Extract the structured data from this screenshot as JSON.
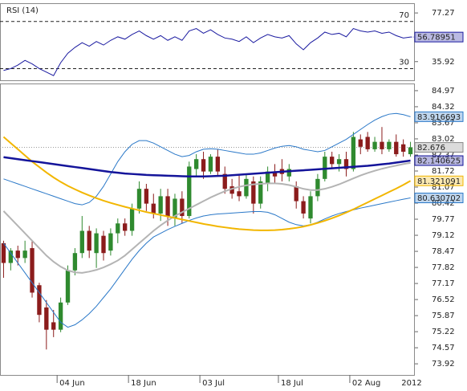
{
  "chart_data": [
    {
      "type": "line",
      "title": "RSI (14)",
      "color": "#1a1aa0",
      "values": [
        28.4,
        30,
        33,
        37,
        34,
        30,
        27,
        24,
        35,
        43,
        48,
        52,
        49,
        53,
        50,
        54,
        57,
        55,
        59,
        62,
        58,
        55,
        58,
        54,
        57,
        54,
        62,
        64,
        60,
        63,
        59,
        56,
        55,
        53,
        57,
        52,
        56,
        59,
        57,
        56,
        58,
        51,
        46,
        52,
        56,
        61,
        59,
        60,
        57,
        64,
        62,
        61,
        62,
        60,
        61,
        58,
        56,
        56.78951
      ],
      "ylim": [
        20.07,
        85.54
      ],
      "yticks": [
        35.92,
        77.27
      ],
      "levels": [
        30,
        70
      ]
    },
    {
      "type": "candlestick",
      "categories": [
        null,
        null,
        null,
        null,
        null,
        null,
        null,
        null,
        "04 Jun",
        null,
        null,
        null,
        null,
        null,
        null,
        null,
        null,
        null,
        "18 Jun",
        null,
        null,
        null,
        null,
        null,
        null,
        null,
        null,
        null,
        "03 Jul",
        null,
        null,
        null,
        null,
        null,
        null,
        null,
        null,
        null,
        null,
        "18 Jul",
        null,
        null,
        null,
        null,
        null,
        null,
        null,
        null,
        null,
        "02 Aug",
        null,
        null,
        null,
        null,
        null,
        null,
        null,
        null
      ],
      "year_label": "2012",
      "open": [
        78.8,
        78.0,
        78.5,
        78.2,
        78.6,
        77.1,
        76.2,
        75.6,
        75.3,
        76.4,
        77.7,
        78.4,
        79.3,
        78.4,
        79.1,
        78.5,
        79.2,
        79.6,
        79.3,
        80.2,
        81.0,
        80.4,
        80.0,
        80.7,
        79.8,
        80.6,
        79.9,
        81.8,
        82.2,
        81.7,
        82.3,
        81.6,
        81.1,
        80.9,
        80.7,
        81.3,
        80.4,
        81.2,
        81.7,
        81.8,
        81.5,
        81.1,
        80.5,
        79.8,
        80.7,
        81.4,
        82.3,
        82.0,
        82.2,
        81.8,
        83.0,
        83.1,
        82.6,
        82.9,
        82.6,
        82.9,
        82.8,
        82.4
      ],
      "high": [
        78.9,
        78.6,
        78.7,
        78.9,
        78.9,
        77.2,
        76.5,
        76.1,
        76.6,
        77.9,
        78.6,
        79.9,
        79.5,
        79.4,
        79.3,
        79.4,
        79.8,
        79.8,
        80.4,
        81.3,
        81.2,
        80.8,
        81.0,
        81.0,
        80.8,
        80.9,
        82.1,
        82.4,
        82.5,
        82.4,
        82.6,
        81.9,
        81.4,
        81.6,
        81.6,
        81.5,
        81.5,
        81.9,
        82.0,
        82.2,
        82.0,
        81.3,
        80.7,
        80.9,
        81.6,
        82.5,
        82.5,
        82.4,
        82.5,
        83.3,
        83.2,
        83.3,
        83.1,
        83.5,
        83.0,
        83.2,
        83.0,
        82.9
      ],
      "low": [
        77.4,
        77.7,
        77.9,
        78.0,
        76.6,
        75.6,
        74.5,
        75.0,
        75.2,
        76.3,
        77.5,
        78.2,
        78.2,
        77.8,
        78.1,
        78.3,
        78.8,
        79.1,
        79.1,
        80.0,
        80.1,
        79.8,
        79.7,
        79.5,
        79.5,
        79.6,
        79.8,
        81.5,
        81.4,
        81.6,
        81.5,
        80.8,
        80.6,
        80.5,
        80.6,
        80.0,
        80.2,
        80.9,
        81.2,
        81.3,
        81.3,
        80.2,
        79.8,
        79.6,
        80.5,
        81.3,
        81.8,
        81.7,
        81.5,
        81.7,
        82.4,
        82.5,
        82.5,
        82.4,
        82.5,
        82.3,
        82.3,
        82.3
      ],
      "close": [
        78.0,
        78.5,
        78.2,
        78.5,
        76.8,
        75.9,
        75.3,
        75.3,
        76.4,
        77.7,
        78.4,
        79.3,
        78.5,
        79.2,
        78.4,
        79.2,
        79.6,
        79.3,
        80.2,
        81.0,
        80.4,
        80.0,
        80.7,
        79.9,
        80.6,
        79.9,
        81.9,
        82.2,
        81.7,
        82.3,
        81.7,
        81.0,
        80.8,
        80.7,
        81.4,
        80.4,
        81.3,
        81.7,
        81.5,
        81.6,
        81.8,
        80.5,
        80.0,
        80.7,
        81.4,
        82.3,
        82.0,
        82.2,
        81.8,
        83.1,
        82.7,
        82.6,
        82.9,
        82.6,
        82.9,
        82.4,
        82.5,
        82.676
      ],
      "up_color": "#2f8a2f",
      "down_color": "#8b1c1c",
      "overlays": [
        {
          "color": "#2a78c8",
          "width": 1,
          "boxed": true,
          "values": [
            81.4,
            81.3,
            81.2,
            81.1,
            81.0,
            80.9,
            80.8,
            80.7,
            80.6,
            80.5,
            80.4,
            80.35,
            80.45,
            80.7,
            81.1,
            81.6,
            82.1,
            82.5,
            82.8,
            82.95,
            82.95,
            82.85,
            82.7,
            82.55,
            82.4,
            82.3,
            82.35,
            82.5,
            82.6,
            82.62,
            82.6,
            82.55,
            82.5,
            82.45,
            82.4,
            82.4,
            82.45,
            82.55,
            82.65,
            82.72,
            82.75,
            82.7,
            82.6,
            82.55,
            82.5,
            82.55,
            82.7,
            82.85,
            83.0,
            83.2,
            83.4,
            83.6,
            83.78,
            83.92,
            84.02,
            84.05,
            84.0,
            83.916693
          ]
        },
        {
          "color": "#2a78c8",
          "width": 1,
          "boxed": true,
          "values": [
            78.8,
            78.4,
            78.0,
            77.6,
            77.2,
            76.8,
            76.4,
            76.0,
            75.6,
            75.4,
            75.5,
            75.7,
            75.95,
            76.25,
            76.6,
            76.95,
            77.35,
            77.75,
            78.15,
            78.5,
            78.8,
            79.05,
            79.2,
            79.35,
            79.48,
            79.6,
            79.72,
            79.82,
            79.9,
            79.95,
            79.98,
            80.0,
            80.02,
            80.04,
            80.06,
            80.08,
            80.08,
            80.05,
            79.95,
            79.8,
            79.65,
            79.55,
            79.5,
            79.55,
            79.65,
            79.78,
            79.9,
            80.0,
            80.08,
            80.15,
            80.22,
            80.28,
            80.34,
            80.4,
            80.46,
            80.52,
            80.58,
            80.630702
          ]
        },
        {
          "color": "#b4b4b4",
          "width": 2,
          "boxed": false,
          "values": [
            80.1,
            79.8,
            79.5,
            79.2,
            78.9,
            78.6,
            78.3,
            78.05,
            77.85,
            77.7,
            77.62,
            77.6,
            77.65,
            77.72,
            77.82,
            77.95,
            78.1,
            78.3,
            78.55,
            78.8,
            79.05,
            79.3,
            79.52,
            79.72,
            79.9,
            80.05,
            80.2,
            80.35,
            80.5,
            80.65,
            80.78,
            80.9,
            81.0,
            81.08,
            81.14,
            81.18,
            81.2,
            81.22,
            81.22,
            81.2,
            81.15,
            81.08,
            81.0,
            80.95,
            80.95,
            81.0,
            81.08,
            81.18,
            81.3,
            81.42,
            81.54,
            81.64,
            81.73,
            81.81,
            81.88,
            81.94,
            82.0,
            82.05
          ]
        },
        {
          "color": "#f2b600",
          "width": 2,
          "boxed": true,
          "values": [
            83.1,
            82.85,
            82.6,
            82.35,
            82.1,
            81.88,
            81.66,
            81.46,
            81.28,
            81.12,
            80.98,
            80.85,
            80.73,
            80.62,
            80.52,
            80.43,
            80.35,
            80.27,
            80.2,
            80.13,
            80.06,
            80.0,
            79.94,
            79.88,
            79.82,
            79.76,
            79.7,
            79.64,
            79.58,
            79.53,
            79.48,
            79.44,
            79.4,
            79.37,
            79.35,
            79.33,
            79.32,
            79.32,
            79.33,
            79.35,
            79.38,
            79.42,
            79.47,
            79.54,
            79.62,
            79.71,
            79.81,
            79.92,
            80.04,
            80.17,
            80.31,
            80.45,
            80.59,
            80.73,
            80.87,
            81.01,
            81.16,
            81.321091
          ]
        },
        {
          "color": "#14149a",
          "width": 2.5,
          "boxed": true,
          "values": [
            82.28,
            82.24,
            82.2,
            82.16,
            82.12,
            82.08,
            82.04,
            82.0,
            81.96,
            81.92,
            81.88,
            81.84,
            81.8,
            81.76,
            81.72,
            81.68,
            81.65,
            81.62,
            81.6,
            81.58,
            81.56,
            81.55,
            81.54,
            81.53,
            81.52,
            81.51,
            81.5,
            81.5,
            81.5,
            81.51,
            81.52,
            81.53,
            81.55,
            81.57,
            81.59,
            81.61,
            81.63,
            81.65,
            81.67,
            81.69,
            81.71,
            81.73,
            81.75,
            81.77,
            81.79,
            81.81,
            81.83,
            81.85,
            81.87,
            81.89,
            81.91,
            81.93,
            81.96,
            81.99,
            82.02,
            82.06,
            82.1,
            82.140625
          ]
        }
      ],
      "ylim": [
        73.47,
        85.26
      ],
      "yticks": [
        84.97,
        84.32,
        83.67,
        83.02,
        82.37,
        81.72,
        81.07,
        80.42,
        79.77,
        79.12,
        78.47,
        77.82,
        77.17,
        76.52,
        75.87,
        75.22,
        74.57,
        73.92
      ]
    }
  ]
}
